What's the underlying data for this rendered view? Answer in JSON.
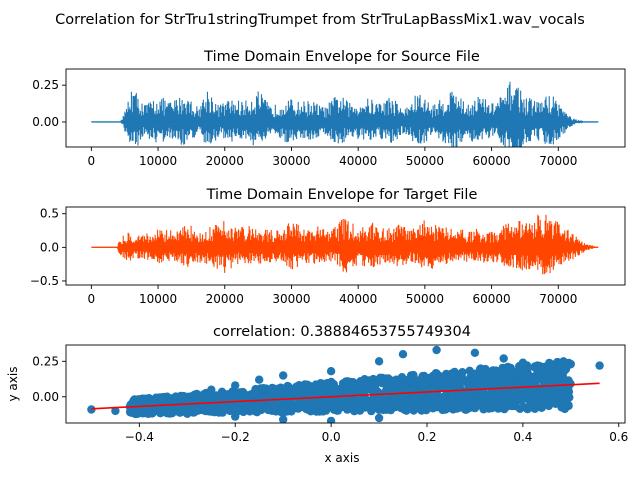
{
  "figure": {
    "suptitle": "Correlation for StrTru1stringTrumpet from StrTruLapBassMix1.wav_vocals"
  },
  "chart_data": [
    {
      "type": "line",
      "title": "Time Domain Envelope for Source File",
      "xlabel": "",
      "ylabel": "",
      "xlim": [
        -3800,
        80000
      ],
      "ylim": [
        -0.17,
        0.36
      ],
      "xticks": [
        0,
        10000,
        20000,
        30000,
        40000,
        50000,
        60000,
        70000
      ],
      "xtick_labels": [
        "0",
        "10000",
        "20000",
        "30000",
        "40000",
        "50000",
        "60000",
        "70000"
      ],
      "yticks": [
        0.25,
        0.0
      ],
      "ytick_labels": [
        "0.25",
        "0.00"
      ],
      "color": "#1f77b4",
      "length": 76000,
      "envelope_x": [
        0,
        4000,
        4600,
        5200,
        6000,
        8000,
        10000,
        12000,
        14000,
        16000,
        17500,
        19000,
        21000,
        23000,
        25000,
        27000,
        29000,
        31000,
        33000,
        35000,
        37000,
        39000,
        41000,
        43000,
        45000,
        47000,
        49000,
        51000,
        53000,
        54500,
        56000,
        58000,
        60000,
        62000,
        63300,
        65000,
        67000,
        69000,
        70500,
        71500,
        72500,
        74000,
        76000
      ],
      "envelope_y": [
        0.0,
        0.0,
        0.02,
        0.1,
        0.26,
        0.12,
        0.18,
        0.14,
        0.2,
        0.1,
        0.24,
        0.12,
        0.16,
        0.14,
        0.22,
        0.1,
        0.17,
        0.14,
        0.15,
        0.1,
        0.2,
        0.12,
        0.17,
        0.14,
        0.18,
        0.09,
        0.21,
        0.12,
        0.17,
        0.26,
        0.12,
        0.19,
        0.13,
        0.2,
        0.33,
        0.17,
        0.15,
        0.2,
        0.12,
        0.05,
        0.02,
        0.005,
        0.0
      ]
    },
    {
      "type": "line",
      "title": "Time Domain Envelope for Target File",
      "xlabel": "",
      "ylabel": "",
      "xlim": [
        -3800,
        80000
      ],
      "ylim": [
        -0.56,
        0.6
      ],
      "xticks": [
        0,
        10000,
        20000,
        30000,
        40000,
        50000,
        60000,
        70000
      ],
      "xtick_labels": [
        "0",
        "10000",
        "20000",
        "30000",
        "40000",
        "50000",
        "60000",
        "70000"
      ],
      "yticks": [
        0.5,
        0.0,
        -0.5
      ],
      "ytick_labels": [
        "0.5",
        "0.0",
        "−0.5"
      ],
      "color": "#ff4500",
      "length": 76000,
      "envelope_x": [
        0,
        3800,
        4200,
        5500,
        6500,
        8500,
        10500,
        12500,
        14500,
        16500,
        18500,
        20000,
        22000,
        24000,
        26000,
        28000,
        30000,
        32000,
        34000,
        36000,
        38000,
        40000,
        42000,
        44000,
        46000,
        48000,
        50000,
        52000,
        54000,
        56000,
        58000,
        60000,
        62000,
        64000,
        66000,
        67500,
        69000,
        71000,
        73000,
        74500,
        76000
      ],
      "envelope_y": [
        0.0,
        0.0,
        0.12,
        0.25,
        0.2,
        0.22,
        0.3,
        0.24,
        0.35,
        0.28,
        0.38,
        0.45,
        0.3,
        0.33,
        0.28,
        0.25,
        0.4,
        0.28,
        0.32,
        0.26,
        0.46,
        0.3,
        0.38,
        0.28,
        0.34,
        0.27,
        0.44,
        0.33,
        0.3,
        0.26,
        0.28,
        0.25,
        0.36,
        0.42,
        0.38,
        0.55,
        0.45,
        0.3,
        0.15,
        0.05,
        0.0
      ]
    },
    {
      "type": "scatter",
      "title": "correlation: 0.38884653755749304",
      "xlabel": "x axis",
      "ylabel": "y axis",
      "xlim": [
        -0.553,
        0.613
      ],
      "ylim": [
        -0.185,
        0.365
      ],
      "xticks": [
        -0.4,
        -0.2,
        0.0,
        0.2,
        0.4,
        0.6
      ],
      "xtick_labels": [
        "−0.4",
        "−0.2",
        "0.0",
        "0.2",
        "0.4",
        "0.6"
      ],
      "yticks": [
        0.25,
        0.0
      ],
      "ytick_labels": [
        "0.25",
        "0.00"
      ],
      "scatter_color": "#1f77b4",
      "fit_color": "#ff0000",
      "points": [
        [
          -0.5,
          -0.09
        ],
        [
          -0.45,
          -0.1
        ],
        [
          -0.42,
          -0.07
        ],
        [
          -0.38,
          -0.05
        ],
        [
          -0.35,
          -0.03
        ],
        [
          -0.3,
          0.0
        ],
        [
          -0.25,
          0.05
        ],
        [
          -0.2,
          0.08
        ],
        [
          -0.15,
          0.12
        ],
        [
          -0.1,
          0.15
        ],
        [
          0.0,
          0.18
        ],
        [
          0.1,
          0.25
        ],
        [
          0.15,
          0.3
        ],
        [
          0.22,
          0.33
        ],
        [
          0.3,
          0.31
        ],
        [
          0.36,
          0.27
        ],
        [
          0.4,
          0.24
        ],
        [
          0.43,
          0.22
        ],
        [
          0.46,
          0.21
        ],
        [
          0.5,
          0.23
        ],
        [
          0.56,
          0.22
        ],
        [
          0.4,
          0.1
        ],
        [
          0.42,
          0.05
        ],
        [
          0.3,
          -0.08
        ],
        [
          0.1,
          -0.15
        ],
        [
          0.0,
          -0.17
        ],
        [
          -0.1,
          -0.16
        ],
        [
          -0.2,
          -0.14
        ],
        [
          -0.3,
          -0.12
        ]
      ],
      "fit_line": [
        [
          -0.5,
          -0.085
        ],
        [
          0.56,
          0.095
        ]
      ]
    }
  ]
}
